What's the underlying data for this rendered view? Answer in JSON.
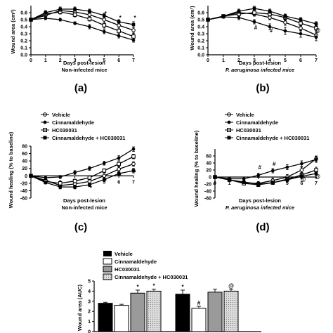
{
  "colors": {
    "ink": "#000000",
    "background": "#ffffff",
    "bar_gray": "#9a9a9a",
    "bar_light": "#d8d8d8"
  },
  "legend_labels": [
    "Vehicle",
    "Cinnamaldehyde",
    "HC030031",
    "Cinnamaldehyde + HC030031"
  ],
  "panels": [
    {
      "letter": "(a)"
    },
    {
      "letter": "(b)"
    },
    {
      "letter": "(c)"
    },
    {
      "letter": "(d)"
    },
    {
      "letter": ""
    }
  ],
  "chart_data": [
    {
      "type": "line",
      "xlabel": "Days post-lesion",
      "subtitle": "Non-infected mice",
      "ylabel": "Wound area (cm²)",
      "xlim": [
        0,
        7
      ],
      "ylim": [
        0,
        0.7
      ],
      "xticks": [
        0,
        1,
        2,
        3,
        4,
        5,
        6,
        7
      ],
      "yticks": [
        0.0,
        0.1,
        0.2,
        0.3,
        0.4,
        0.5,
        0.6
      ],
      "ytick_labels": [
        "0.0",
        "0.1",
        "0.2",
        "0.3",
        "0.4",
        "0.5",
        "0.6"
      ],
      "x": [
        0,
        1,
        2,
        3,
        4,
        5,
        6,
        7
      ],
      "series": [
        {
          "name": "Vehicle",
          "marker": "open-circle",
          "values": [
            0.5,
            0.56,
            0.63,
            0.61,
            0.57,
            0.5,
            0.42,
            0.35
          ],
          "err": [
            0.02,
            0.02,
            0.03,
            0.03,
            0.03,
            0.04,
            0.04,
            0.04
          ]
        },
        {
          "name": "Cinnamaldehyde",
          "marker": "filled-circle",
          "values": [
            0.5,
            0.52,
            0.5,
            0.45,
            0.4,
            0.33,
            0.27,
            0.21
          ],
          "err": [
            0.02,
            0.02,
            0.02,
            0.02,
            0.03,
            0.03,
            0.03,
            0.03
          ]
        },
        {
          "name": "HC030031",
          "marker": "open-square",
          "values": [
            0.5,
            0.58,
            0.61,
            0.57,
            0.51,
            0.42,
            0.34,
            0.26
          ],
          "err": [
            0.02,
            0.03,
            0.03,
            0.03,
            0.03,
            0.04,
            0.04,
            0.04
          ]
        },
        {
          "name": "Cinnamaldehyde + HC030031",
          "marker": "filled-square",
          "values": [
            0.5,
            0.6,
            0.65,
            0.65,
            0.62,
            0.56,
            0.47,
            0.43
          ],
          "err": [
            0.02,
            0.03,
            0.03,
            0.03,
            0.03,
            0.03,
            0.03,
            0.04
          ]
        }
      ],
      "annotations": [
        {
          "x": 5,
          "y": 0.56,
          "text": "*"
        },
        {
          "x": 6,
          "y": 0.5,
          "text": "*"
        },
        {
          "x": 7,
          "y": 0.5,
          "text": "*"
        }
      ]
    },
    {
      "type": "line",
      "xlabel": "Days post-lesion",
      "subtitle": "P. aeruginosa infected mice",
      "ylabel": "Wound area (cm²)",
      "xlim": [
        0,
        7
      ],
      "ylim": [
        0,
        0.7
      ],
      "xticks": [
        0,
        1,
        2,
        3,
        4,
        5,
        6,
        7
      ],
      "yticks": [
        0.0,
        0.1,
        0.2,
        0.3,
        0.4,
        0.5,
        0.6
      ],
      "ytick_labels": [
        "0.0",
        "0.1",
        "0.2",
        "0.3",
        "0.4",
        "0.5",
        "0.6"
      ],
      "x": [
        0,
        1,
        2,
        3,
        4,
        5,
        6,
        7
      ],
      "series": [
        {
          "name": "Vehicle",
          "marker": "open-circle",
          "values": [
            0.5,
            0.55,
            0.6,
            0.58,
            0.53,
            0.46,
            0.38,
            0.28
          ],
          "err": [
            0.02,
            0.02,
            0.03,
            0.03,
            0.03,
            0.04,
            0.04,
            0.04
          ]
        },
        {
          "name": "Cinnamaldehyde",
          "marker": "filled-circle",
          "values": [
            0.5,
            0.54,
            0.53,
            0.47,
            0.4,
            0.34,
            0.3,
            0.25
          ],
          "err": [
            0.02,
            0.02,
            0.03,
            0.03,
            0.04,
            0.05,
            0.05,
            0.05
          ]
        },
        {
          "name": "HC030031",
          "marker": "open-square",
          "values": [
            0.5,
            0.55,
            0.58,
            0.6,
            0.58,
            0.53,
            0.45,
            0.38
          ],
          "err": [
            0.02,
            0.02,
            0.03,
            0.03,
            0.03,
            0.04,
            0.04,
            0.04
          ]
        },
        {
          "name": "Cinnamaldehyde + HC030031",
          "marker": "filled-square",
          "values": [
            0.5,
            0.55,
            0.62,
            0.66,
            0.62,
            0.55,
            0.5,
            0.44
          ],
          "err": [
            0.02,
            0.02,
            0.03,
            0.03,
            0.03,
            0.03,
            0.03,
            0.03
          ]
        }
      ],
      "annotations": [
        {
          "x": 3,
          "y": 0.36,
          "text": "#"
        },
        {
          "x": 4,
          "y": 0.32,
          "text": "#"
        },
        {
          "x": 7,
          "y": 0.32,
          "text": "@"
        }
      ]
    },
    {
      "type": "line",
      "xlabel": "Days post-lesion",
      "subtitle": "Non-infected mice",
      "ylabel": "Wound healing (% to baseline)",
      "xlim": [
        0,
        7
      ],
      "ylim": [
        -60,
        80
      ],
      "xticks": [
        0,
        1,
        2,
        3,
        4,
        5,
        6,
        7
      ],
      "xtick_labels": [
        "",
        "1",
        "2",
        "3",
        "4",
        "5",
        "6",
        "7"
      ],
      "yticks": [
        -60,
        -40,
        -20,
        0,
        20,
        40,
        60,
        80
      ],
      "ytick_labels": [
        "-60",
        "-40",
        "-20",
        "0",
        "20",
        "40",
        "60",
        "80"
      ],
      "x": [
        0,
        1,
        2,
        3,
        4,
        5,
        6,
        7
      ],
      "series": [
        {
          "name": "Vehicle",
          "marker": "open-circle",
          "values": [
            0,
            -12,
            -26,
            -22,
            -15,
            0,
            18,
            32
          ],
          "err": [
            3,
            4,
            5,
            5,
            5,
            6,
            6,
            6
          ]
        },
        {
          "name": "Cinnamaldehyde",
          "marker": "filled-circle",
          "values": [
            0,
            -5,
            -3,
            9,
            20,
            34,
            48,
            72
          ],
          "err": [
            3,
            4,
            4,
            5,
            5,
            5,
            6,
            6
          ]
        },
        {
          "name": "HC030031",
          "marker": "open-square",
          "values": [
            0,
            -15,
            -20,
            -14,
            -5,
            14,
            32,
            52
          ],
          "err": [
            3,
            4,
            5,
            5,
            5,
            5,
            6,
            6
          ]
        },
        {
          "name": "Cinnamaldehyde + HC030031",
          "marker": "filled-square",
          "values": [
            0,
            -18,
            -30,
            -30,
            -24,
            -10,
            6,
            14
          ],
          "err": [
            3,
            4,
            5,
            5,
            5,
            6,
            6,
            6
          ]
        }
      ],
      "annotations": [
        {
          "x": 5,
          "y": -18,
          "text": "*"
        },
        {
          "x": 6,
          "y": -4,
          "text": "*"
        },
        {
          "x": 7,
          "y": 4,
          "text": "*"
        },
        {
          "x": 4,
          "y": -38,
          "text": "*"
        }
      ]
    },
    {
      "type": "line",
      "xlabel": "Days post-lesion",
      "subtitle": "P. aeruginosa infected mice",
      "ylabel": "Wound healing (% to baseline)",
      "xlim": [
        0,
        7
      ],
      "ylim": [
        -60,
        80
      ],
      "xticks": [
        0,
        1,
        2,
        3,
        4,
        5,
        6,
        7
      ],
      "yticks": [
        -60,
        -40,
        -20,
        0,
        20,
        40,
        60
      ],
      "ytick_labels": [
        "-60",
        "-40",
        "-20",
        "0",
        "20",
        "40",
        "60"
      ],
      "x": [
        0,
        1,
        2,
        3,
        4,
        5,
        6,
        7
      ],
      "series": [
        {
          "name": "Vehicle",
          "marker": "open-circle",
          "values": [
            0,
            -8,
            -16,
            -18,
            -10,
            0,
            20,
            52
          ],
          "err": [
            3,
            4,
            5,
            5,
            6,
            7,
            8,
            8
          ]
        },
        {
          "name": "Cinnamaldehyde",
          "marker": "filled-circle",
          "values": [
            0,
            -5,
            -5,
            5,
            18,
            28,
            38,
            50
          ],
          "err": [
            3,
            4,
            5,
            6,
            6,
            7,
            8,
            8
          ]
        },
        {
          "name": "HC030031",
          "marker": "open-square",
          "values": [
            0,
            -8,
            -18,
            -22,
            -16,
            -6,
            6,
            20
          ],
          "err": [
            3,
            4,
            5,
            5,
            5,
            6,
            7,
            8
          ]
        },
        {
          "name": "Cinnamaldehyde + HC030031",
          "marker": "filled-square",
          "values": [
            0,
            -8,
            -14,
            -20,
            -16,
            -8,
            2,
            10
          ],
          "err": [
            3,
            4,
            5,
            5,
            5,
            6,
            6,
            6
          ]
        }
      ],
      "annotations": [
        {
          "x": 3,
          "y": 22,
          "text": "#"
        },
        {
          "x": 4,
          "y": 32,
          "text": "#"
        },
        {
          "x": 6,
          "y": -12,
          "text": "@"
        },
        {
          "x": 7,
          "y": -4,
          "text": "@"
        }
      ]
    },
    {
      "type": "bar",
      "ylabel": "Wound area (AUC)",
      "ylim": [
        0,
        5
      ],
      "yticks": [
        0,
        1,
        2,
        3,
        4,
        5
      ],
      "ytick_labels": [
        "0",
        "1",
        "2",
        "3",
        "4",
        "5"
      ],
      "series": [
        {
          "name": "Vehicle",
          "fill": "black",
          "values": [
            2.8,
            3.7
          ],
          "err": [
            0.1,
            0.4
          ]
        },
        {
          "name": "Cinnamaldehyde",
          "fill": "white",
          "values": [
            2.6,
            2.3
          ],
          "err": [
            0.1,
            0.2
          ]
        },
        {
          "name": "HC030031",
          "fill": "gray",
          "values": [
            3.8,
            3.9
          ],
          "err": [
            0.3,
            0.3
          ]
        },
        {
          "name": "Cinnamaldehyde + HC030031",
          "fill": "light-dotted",
          "values": [
            4.0,
            4.0
          ],
          "err": [
            0.2,
            0.2
          ]
        }
      ],
      "annotations": [
        {
          "group": 0,
          "bar": 2,
          "text": "*"
        },
        {
          "group": 0,
          "bar": 3,
          "text": "*"
        },
        {
          "group": 1,
          "bar": 0,
          "text": "*"
        },
        {
          "group": 1,
          "bar": 1,
          "text": "#"
        },
        {
          "group": 1,
          "bar": 3,
          "text": "@"
        }
      ]
    }
  ]
}
